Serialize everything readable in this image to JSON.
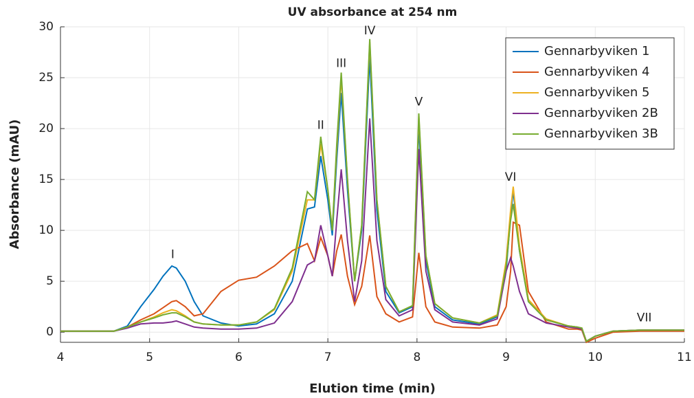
{
  "chart_data": {
    "type": "line",
    "title": "UV absorbance at 254 nm",
    "x_label": "Elution time (min)",
    "y_label": "Absorbance (mAU)",
    "x": [
      4,
      4.6,
      4.75,
      4.9,
      5.05,
      5.15,
      5.25,
      5.3,
      5.4,
      5.5,
      5.6,
      5.8,
      6.0,
      6.2,
      6.4,
      6.6,
      6.77,
      6.85,
      6.92,
      7.0,
      7.05,
      7.1,
      7.15,
      7.22,
      7.3,
      7.38,
      7.47,
      7.55,
      7.65,
      7.8,
      7.95,
      8.02,
      8.1,
      8.2,
      8.4,
      8.7,
      8.9,
      9.0,
      9.05,
      9.08,
      9.15,
      9.25,
      9.45,
      9.7,
      9.8,
      9.85,
      9.9,
      10.0,
      10.2,
      10.5,
      11.0
    ],
    "series": [
      {
        "name": "Gennarbyviken 1",
        "color": "#0072bd",
        "values": [
          0.1,
          0.1,
          0.6,
          2.5,
          4.2,
          5.5,
          6.5,
          6.3,
          5.0,
          3.0,
          1.6,
          0.9,
          0.6,
          0.8,
          1.8,
          5,
          12.1,
          12.3,
          17.3,
          13,
          9.5,
          17,
          23.5,
          14,
          5,
          10,
          27,
          12,
          4,
          1.9,
          2.5,
          20.2,
          7,
          2.5,
          1.2,
          0.8,
          1.5,
          6,
          11.5,
          13.9,
          8,
          3,
          1.2,
          0.6,
          0.5,
          0.4,
          -0.9,
          -0.4,
          0.1,
          0.2,
          0.2
        ]
      },
      {
        "name": "Gennarbyviken 4",
        "color": "#d95319",
        "values": [
          0.1,
          0.1,
          0.5,
          1.2,
          1.8,
          2.4,
          3.0,
          3.1,
          2.5,
          1.6,
          1.8,
          4,
          5.1,
          5.4,
          6.5,
          8.0,
          8.7,
          7.0,
          9.3,
          7.5,
          5.5,
          8,
          9.6,
          5.5,
          2.7,
          4.5,
          9.5,
          3.5,
          1.8,
          1.0,
          1.5,
          7.8,
          2.5,
          1.0,
          0.5,
          0.4,
          0.7,
          2.5,
          6,
          10.8,
          10.5,
          4,
          1.0,
          0.3,
          0.3,
          0.2,
          -1.0,
          -0.6,
          0.0,
          0.1,
          0.1
        ]
      },
      {
        "name": "Gennarbyviken 5",
        "color": "#edb120",
        "values": [
          0.1,
          0.1,
          0.5,
          1.0,
          1.5,
          1.9,
          2.2,
          2.1,
          1.6,
          1.0,
          0.8,
          0.7,
          0.7,
          1.0,
          2.2,
          6,
          13,
          13,
          18.5,
          14,
          10,
          18,
          25,
          15,
          5,
          10.5,
          28.5,
          13,
          4.5,
          2.0,
          2.6,
          21.2,
          7.5,
          2.8,
          1.4,
          0.9,
          1.7,
          7,
          12,
          14.3,
          8.5,
          3.2,
          1.3,
          0.6,
          0.5,
          0.4,
          -0.9,
          -0.4,
          0.1,
          0.2,
          0.2
        ]
      },
      {
        "name": "Gennarbyviken 2B",
        "color": "#7e2f8e",
        "values": [
          0.1,
          0.1,
          0.4,
          0.8,
          0.9,
          0.9,
          1.0,
          1.1,
          0.8,
          0.5,
          0.4,
          0.3,
          0.3,
          0.4,
          0.9,
          3,
          6.6,
          7.0,
          10.5,
          7.5,
          5.5,
          11,
          16,
          9,
          3,
          7,
          21,
          9,
          3.2,
          1.6,
          2.2,
          18,
          6,
          2.2,
          1.0,
          0.7,
          1.3,
          6,
          7.3,
          6.5,
          4,
          1.8,
          0.9,
          0.5,
          0.4,
          0.3,
          -0.9,
          -0.4,
          0.1,
          0.2,
          0.2
        ]
      },
      {
        "name": "Gennarbyviken 3B",
        "color": "#77ac30",
        "values": [
          0.1,
          0.1,
          0.5,
          1.0,
          1.4,
          1.7,
          1.9,
          1.9,
          1.5,
          1.0,
          0.8,
          0.7,
          0.7,
          1.0,
          2.3,
          6.3,
          13.8,
          13,
          19.2,
          14,
          10,
          18.5,
          25.5,
          15,
          5,
          10.5,
          28.8,
          13,
          4.5,
          2.0,
          2.6,
          21.5,
          7.5,
          2.8,
          1.4,
          0.9,
          1.6,
          6.5,
          11,
          12.6,
          8,
          3,
          1.2,
          0.6,
          0.5,
          0.4,
          -0.9,
          -0.4,
          0.1,
          0.2,
          0.2
        ]
      }
    ],
    "annotations": [
      "I",
      "II",
      "III",
      "IV",
      "V",
      "VI",
      "VII"
    ],
    "xlim": [
      4,
      11
    ],
    "xticks": [
      4,
      5,
      6,
      7,
      8,
      9,
      10,
      11
    ],
    "ylim": [
      -1,
      30
    ],
    "yticks": [
      0,
      5,
      10,
      15,
      20,
      25,
      30
    ],
    "grid": true,
    "legend": "top-right"
  }
}
